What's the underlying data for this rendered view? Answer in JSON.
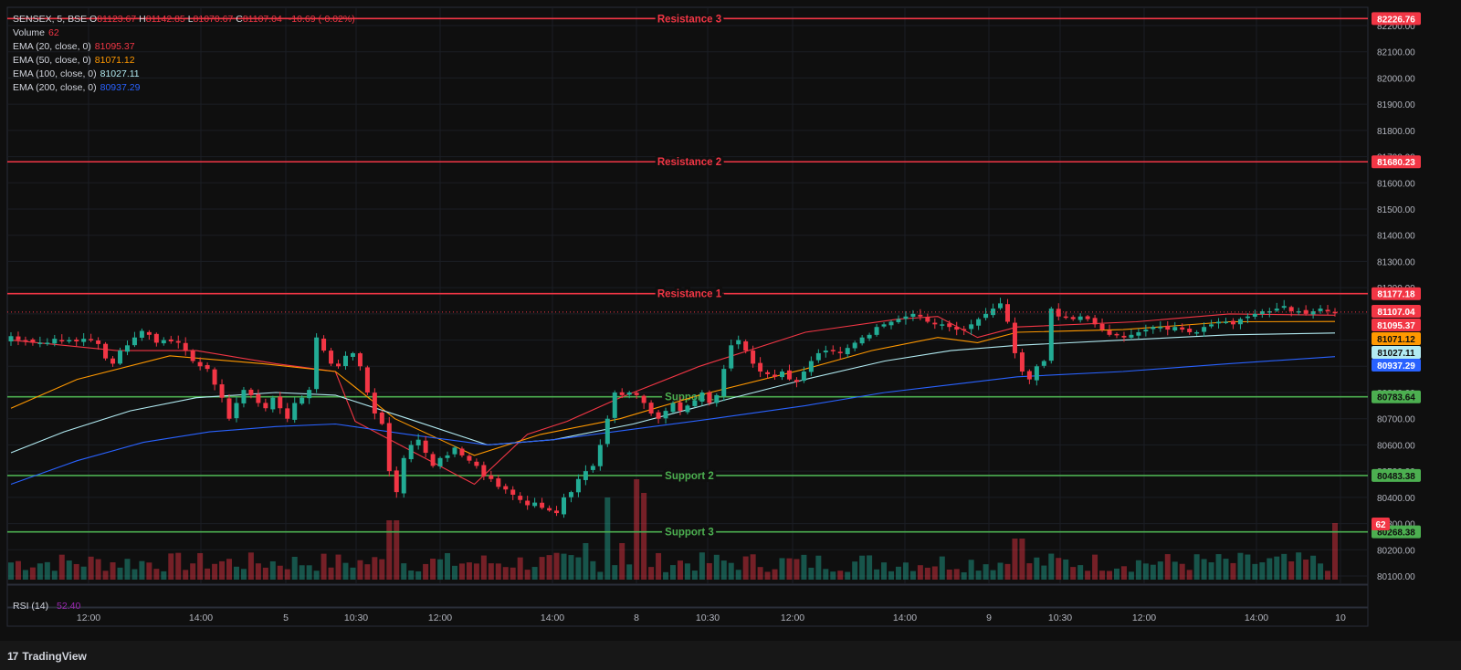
{
  "header": {
    "symbol_line": "SENSEX, 5, BSE",
    "ohlc": {
      "O": "81123.67",
      "H": "81142.85",
      "L": "81070.67",
      "C": "81107.04",
      "change": "-10.69 (-0.02%)"
    },
    "volume_label": "Volume",
    "volume_value": "62",
    "ema": [
      {
        "label": "EMA (20, close, 0)",
        "value": "81095.37",
        "color": "#f23645"
      },
      {
        "label": "EMA (50, close, 0)",
        "value": "81071.12",
        "color": "#ff9800"
      },
      {
        "label": "EMA (100, close, 0)",
        "value": "81027.11",
        "color": "#b2ebf2"
      },
      {
        "label": "EMA (200, close, 0)",
        "value": "80937.29",
        "color": "#2962ff"
      }
    ],
    "rsi_label": "RSI (14)",
    "rsi_value": "52.40"
  },
  "branding": {
    "logo_text": "TradingView",
    "logo_mark": "17"
  },
  "colors": {
    "up": "#22ab94",
    "down": "#f23645",
    "resistance": "#f23645",
    "support": "#4caf50",
    "background": "#0f0f0f"
  },
  "chart_data": {
    "type": "candlestick",
    "y_axis": {
      "min": 80100,
      "max": 82200,
      "ticks": [
        "80100.00",
        "80200.00",
        "80300.00",
        "80400.00",
        "80500.00",
        "80600.00",
        "80700.00",
        "80800.00",
        "80900.00",
        "81000.00",
        "81100.00",
        "81200.00",
        "81300.00",
        "81400.00",
        "81500.00",
        "81600.00",
        "81700.00",
        "81800.00",
        "81900.00",
        "82000.00",
        "82100.00",
        "82200.00"
      ]
    },
    "x_axis": {
      "ticks": [
        "12:00",
        "14:00",
        "5",
        "10:30",
        "12:00",
        "14:00",
        "8",
        "10:30",
        "12:00",
        "14:00",
        "9",
        "10:30",
        "12:00",
        "14:00",
        "10"
      ]
    },
    "levels": [
      {
        "name": "Resistance 3",
        "price": 82226.76,
        "label": "82226.76",
        "kind": "resistance"
      },
      {
        "name": "Resistance 2",
        "price": 81680.23,
        "label": "81680.23",
        "kind": "resistance"
      },
      {
        "name": "Resistance 1",
        "price": 81177.18,
        "label": "81177.18",
        "kind": "resistance"
      },
      {
        "name": "Support 1",
        "price": 80783.64,
        "label": "80783.64",
        "kind": "support"
      },
      {
        "name": "Support 2",
        "price": 80483.38,
        "label": "80483.38",
        "kind": "support"
      },
      {
        "name": "Support 3",
        "price": 80268.38,
        "label": "80268.38",
        "kind": "support"
      }
    ],
    "last_price": {
      "value": 81107.04,
      "label": "81107.04"
    },
    "ema_last": [
      {
        "value": 81095.37,
        "label": "81095.37",
        "color": "#f23645"
      },
      {
        "value": 81071.12,
        "label": "81071.12",
        "color": "#ff9800"
      },
      {
        "value": 81027.11,
        "label": "81027.11",
        "color": "#b2ebf2"
      },
      {
        "value": 80937.29,
        "label": "80937.29",
        "color": "#2962ff"
      }
    ],
    "volume_last": {
      "value": 62,
      "label": "62"
    },
    "close_path": [
      81015,
      81000,
      81000,
      80990,
      80990,
      80990,
      81005,
      81000,
      81000,
      80995,
      81005,
      81000,
      80985,
      80930,
      80910,
      80960,
      80980,
      81010,
      81035,
      81020,
      80990,
      81000,
      80995,
      80990,
      80960,
      80920,
      80900,
      80890,
      80830,
      80780,
      80700,
      80760,
      80810,
      80790,
      80760,
      80740,
      80780,
      80740,
      80700,
      80760,
      80780,
      80810,
      81010,
      80960,
      80910,
      80900,
      80940,
      80950,
      80900,
      80800,
      80720,
      80680,
      80500,
      80420,
      80550,
      80600,
      80620,
      80570,
      80520,
      80550,
      80560,
      80590,
      80560,
      80540,
      80520,
      80480,
      80470,
      80440,
      80430,
      80410,
      80390,
      80370,
      80380,
      80360,
      80350,
      80340,
      80400,
      80420,
      80470,
      80500,
      80520,
      80600,
      80700,
      80800,
      80790,
      80800,
      80790,
      80760,
      80720,
      80700,
      80730,
      80760,
      80730,
      80750,
      80770,
      80800,
      80760,
      80790,
      80890,
      80980,
      81000,
      80960,
      80910,
      80880,
      80870,
      80860,
      80880,
      80850,
      80840,
      80880,
      80920,
      80950,
      80960,
      80960,
      80950,
      80970,
      80990,
      81010,
      81020,
      81050,
      81060,
      81070,
      81080,
      81090,
      81100,
      81090,
      81070,
      81060,
      81060,
      81050,
      81040,
      81040,
      81060,
      81080,
      81100,
      81120,
      81140,
      81070,
      80950,
      80880,
      80850,
      80900,
      80920,
      81120,
      81090,
      81090,
      81080,
      81090,
      81080,
      81060,
      81040,
      81020,
      81020,
      81010,
      81020,
      81030,
      81040,
      81050,
      81050,
      81040,
      81050,
      81040,
      81030,
      81030,
      81050,
      81060,
      81070,
      81070,
      81060,
      81080,
      81090,
      81100,
      81110,
      81110,
      81120,
      81130,
      81110,
      81110,
      81100,
      81110,
      81120,
      81110,
      81107
    ],
    "ema_series": [
      {
        "name": "EMA (20, close, 0)",
        "color": "#f23645",
        "points": [
          [
            0,
            81000
          ],
          [
            0.08,
            80960
          ],
          [
            0.14,
            80960
          ],
          [
            0.2,
            80910
          ],
          [
            0.245,
            80880
          ],
          [
            0.26,
            80690
          ],
          [
            0.32,
            80530
          ],
          [
            0.35,
            80450
          ],
          [
            0.39,
            80640
          ],
          [
            0.42,
            80690
          ],
          [
            0.46,
            80780
          ],
          [
            0.52,
            80900
          ],
          [
            0.6,
            81030
          ],
          [
            0.67,
            81080
          ],
          [
            0.7,
            81090
          ],
          [
            0.73,
            81010
          ],
          [
            0.76,
            81050
          ],
          [
            0.85,
            81070
          ],
          [
            0.92,
            81100
          ],
          [
            1,
            81095
          ]
        ]
      },
      {
        "name": "EMA (50, close, 0)",
        "color": "#ff9800",
        "points": [
          [
            0,
            80740
          ],
          [
            0.05,
            80850
          ],
          [
            0.12,
            80940
          ],
          [
            0.19,
            80910
          ],
          [
            0.245,
            80880
          ],
          [
            0.29,
            80700
          ],
          [
            0.35,
            80560
          ],
          [
            0.4,
            80640
          ],
          [
            0.46,
            80700
          ],
          [
            0.52,
            80790
          ],
          [
            0.6,
            80890
          ],
          [
            0.65,
            80960
          ],
          [
            0.7,
            81010
          ],
          [
            0.73,
            80990
          ],
          [
            0.76,
            81030
          ],
          [
            0.84,
            81040
          ],
          [
            0.92,
            81070
          ],
          [
            1,
            81071
          ]
        ]
      },
      {
        "name": "EMA (100, close, 0)",
        "color": "#b2ebf2",
        "points": [
          [
            0,
            80570
          ],
          [
            0.04,
            80650
          ],
          [
            0.09,
            80730
          ],
          [
            0.14,
            80780
          ],
          [
            0.2,
            80800
          ],
          [
            0.245,
            80790
          ],
          [
            0.3,
            80700
          ],
          [
            0.36,
            80600
          ],
          [
            0.41,
            80620
          ],
          [
            0.47,
            80680
          ],
          [
            0.53,
            80760
          ],
          [
            0.6,
            80850
          ],
          [
            0.66,
            80920
          ],
          [
            0.71,
            80960
          ],
          [
            0.76,
            80980
          ],
          [
            0.84,
            81000
          ],
          [
            0.92,
            81020
          ],
          [
            1,
            81027
          ]
        ]
      },
      {
        "name": "EMA (200, close, 0)",
        "color": "#2962ff",
        "points": [
          [
            0,
            80450
          ],
          [
            0.05,
            80540
          ],
          [
            0.1,
            80610
          ],
          [
            0.15,
            80650
          ],
          [
            0.2,
            80670
          ],
          [
            0.245,
            80680
          ],
          [
            0.3,
            80640
          ],
          [
            0.36,
            80600
          ],
          [
            0.41,
            80620
          ],
          [
            0.47,
            80660
          ],
          [
            0.53,
            80700
          ],
          [
            0.6,
            80750
          ],
          [
            0.66,
            80800
          ],
          [
            0.71,
            80830
          ],
          [
            0.76,
            80860
          ],
          [
            0.84,
            80880
          ],
          [
            0.92,
            80910
          ],
          [
            1,
            80937
          ]
        ]
      }
    ]
  }
}
